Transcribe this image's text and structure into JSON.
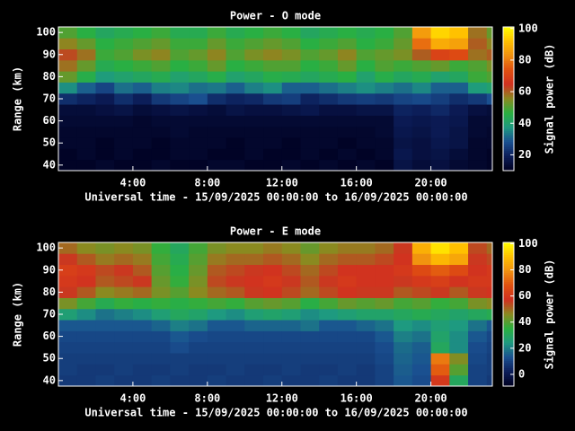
{
  "chart_data": [
    {
      "type": "heatmap",
      "title": "Power - O mode",
      "xlabel": "Universal time - 15/09/2025 00:00:00 to 16/09/2025 00:00:00",
      "ylabel": "Range (km)",
      "colorbar_label": "Signal power (dB)",
      "xlim": [
        0,
        23.3
      ],
      "ylim": [
        37.5,
        102.5
      ],
      "clim": [
        10,
        101
      ],
      "xticks": [
        {
          "value": 4,
          "label": "4:00"
        },
        {
          "value": 8,
          "label": "8:00"
        },
        {
          "value": 12,
          "label": "12:00"
        },
        {
          "value": 16,
          "label": "16:00"
        },
        {
          "value": 20,
          "label": "20:00"
        }
      ],
      "yticks": [
        40,
        50,
        60,
        70,
        80,
        90,
        100
      ],
      "cticks": [
        20,
        40,
        60,
        80,
        100
      ],
      "colormap": [
        "#000020",
        "#0c1e5a",
        "#1a5090",
        "#1e9a80",
        "#2ab040",
        "#8a8a20",
        "#d03020",
        "#e05010",
        "#f09010",
        "#ffc000",
        "#ffff00"
      ],
      "x": [
        0,
        1,
        2,
        3,
        4,
        5,
        6,
        7,
        8,
        9,
        10,
        11,
        12,
        13,
        14,
        15,
        16,
        17,
        18,
        19,
        20,
        21,
        22,
        23
      ],
      "y": [
        40,
        45,
        50,
        55,
        60,
        65,
        70,
        75,
        80,
        85,
        90,
        95,
        100
      ],
      "z": [
        [
          11,
          11,
          12,
          11,
          11,
          12,
          11,
          11,
          12,
          12,
          11,
          11,
          12,
          11,
          12,
          11,
          12,
          11,
          16,
          14,
          15,
          13,
          12,
          11
        ],
        [
          11,
          12,
          11,
          12,
          11,
          11,
          12,
          12,
          11,
          11,
          12,
          11,
          11,
          12,
          11,
          12,
          11,
          12,
          17,
          15,
          16,
          14,
          12,
          11
        ],
        [
          12,
          12,
          11,
          12,
          12,
          11,
          12,
          12,
          12,
          11,
          12,
          12,
          11,
          12,
          12,
          11,
          12,
          12,
          16,
          15,
          17,
          16,
          12,
          12
        ],
        [
          12,
          12,
          12,
          12,
          12,
          12,
          13,
          12,
          12,
          12,
          12,
          12,
          12,
          12,
          12,
          12,
          12,
          13,
          17,
          16,
          18,
          16,
          13,
          12
        ],
        [
          13,
          13,
          13,
          13,
          12,
          13,
          13,
          13,
          13,
          13,
          13,
          13,
          13,
          13,
          13,
          13,
          13,
          13,
          18,
          17,
          18,
          17,
          13,
          13
        ],
        [
          14,
          14,
          15,
          16,
          14,
          15,
          16,
          15,
          14,
          16,
          15,
          15,
          16,
          17,
          15,
          15,
          16,
          16,
          20,
          19,
          21,
          18,
          15,
          14
        ],
        [
          22,
          20,
          18,
          22,
          19,
          24,
          26,
          28,
          22,
          20,
          21,
          24,
          25,
          20,
          22,
          24,
          25,
          24,
          26,
          27,
          25,
          22,
          24,
          28
        ],
        [
          36,
          30,
          26,
          32,
          30,
          34,
          35,
          32,
          33,
          30,
          34,
          36,
          30,
          30,
          32,
          34,
          36,
          34,
          32,
          35,
          30,
          30,
          38,
          40
        ],
        [
          52,
          45,
          38,
          40,
          42,
          44,
          40,
          42,
          45,
          40,
          42,
          45,
          44,
          42,
          44,
          46,
          40,
          45,
          42,
          44,
          40,
          42,
          48,
          50
        ],
        [
          58,
          52,
          44,
          46,
          48,
          50,
          46,
          48,
          52,
          46,
          48,
          50,
          50,
          46,
          48,
          52,
          46,
          50,
          48,
          50,
          52,
          48,
          50,
          54
        ],
        [
          62,
          58,
          48,
          50,
          54,
          56,
          50,
          52,
          56,
          50,
          54,
          56,
          54,
          50,
          52,
          56,
          50,
          52,
          54,
          60,
          70,
          72,
          58,
          60
        ],
        [
          56,
          52,
          46,
          48,
          50,
          52,
          48,
          48,
          52,
          48,
          50,
          52,
          50,
          46,
          48,
          50,
          46,
          48,
          52,
          78,
          88,
          86,
          60,
          56
        ],
        [
          50,
          46,
          42,
          44,
          46,
          48,
          44,
          44,
          48,
          44,
          46,
          48,
          46,
          42,
          44,
          46,
          44,
          46,
          50,
          85,
          95,
          92,
          58,
          52
        ]
      ]
    },
    {
      "type": "heatmap",
      "title": "Power - E mode",
      "xlabel": "Universal time - 15/09/2025 00:00:00 to 16/09/2025 00:00:00",
      "ylabel": "Range (km)",
      "colorbar_label": "Signal power (dB)",
      "xlim": [
        0,
        23.3
      ],
      "ylim": [
        37.5,
        102.5
      ],
      "clim": [
        -9,
        101
      ],
      "xticks": [
        {
          "value": 4,
          "label": "4:00"
        },
        {
          "value": 8,
          "label": "8:00"
        },
        {
          "value": 12,
          "label": "12:00"
        },
        {
          "value": 16,
          "label": "16:00"
        },
        {
          "value": 20,
          "label": "20:00"
        }
      ],
      "yticks": [
        40,
        50,
        60,
        70,
        80,
        90,
        100
      ],
      "cticks": [
        0,
        20,
        40,
        60,
        80,
        100
      ],
      "colormap": [
        "#000020",
        "#0c1e5a",
        "#1a5090",
        "#1e9a80",
        "#2ab040",
        "#8a8a20",
        "#d03020",
        "#e05010",
        "#f09010",
        "#ffc000",
        "#ffff00"
      ],
      "x": [
        0,
        1,
        2,
        3,
        4,
        5,
        6,
        7,
        8,
        9,
        10,
        11,
        12,
        13,
        14,
        15,
        16,
        17,
        18,
        19,
        20,
        21,
        22,
        23
      ],
      "y": [
        40,
        45,
        50,
        55,
        60,
        65,
        70,
        75,
        80,
        85,
        90,
        95,
        100
      ],
      "z": [
        [
          8,
          8,
          9,
          8,
          8,
          9,
          8,
          8,
          9,
          8,
          8,
          9,
          8,
          8,
          9,
          8,
          8,
          10,
          14,
          12,
          60,
          30,
          10,
          8
        ],
        [
          9,
          8,
          8,
          9,
          8,
          8,
          9,
          8,
          8,
          9,
          8,
          8,
          9,
          8,
          8,
          9,
          8,
          10,
          15,
          13,
          70,
          40,
          10,
          9
        ],
        [
          9,
          9,
          9,
          9,
          9,
          9,
          9,
          9,
          9,
          9,
          9,
          9,
          9,
          9,
          9,
          9,
          9,
          11,
          16,
          14,
          75,
          45,
          11,
          9
        ],
        [
          10,
          10,
          10,
          10,
          10,
          10,
          12,
          10,
          10,
          10,
          10,
          10,
          10,
          10,
          10,
          10,
          10,
          12,
          17,
          15,
          30,
          22,
          12,
          10
        ],
        [
          11,
          11,
          11,
          11,
          11,
          11,
          14,
          12,
          11,
          11,
          11,
          11,
          11,
          11,
          11,
          11,
          11,
          14,
          20,
          18,
          28,
          22,
          14,
          11
        ],
        [
          14,
          14,
          14,
          14,
          14,
          16,
          20,
          18,
          14,
          14,
          16,
          16,
          16,
          18,
          14,
          14,
          16,
          18,
          24,
          22,
          26,
          24,
          18,
          14
        ],
        [
          26,
          22,
          18,
          20,
          22,
          26,
          30,
          28,
          24,
          22,
          26,
          28,
          26,
          22,
          24,
          26,
          28,
          28,
          30,
          32,
          30,
          28,
          30,
          32
        ],
        [
          44,
          38,
          32,
          36,
          34,
          36,
          34,
          36,
          38,
          36,
          40,
          42,
          40,
          34,
          38,
          42,
          40,
          42,
          38,
          40,
          36,
          38,
          44,
          46
        ],
        [
          56,
          52,
          46,
          48,
          50,
          44,
          40,
          46,
          50,
          52,
          56,
          58,
          54,
          50,
          54,
          58,
          56,
          56,
          52,
          54,
          56,
          52,
          56,
          58
        ],
        [
          60,
          58,
          52,
          54,
          56,
          42,
          36,
          44,
          54,
          56,
          58,
          60,
          56,
          52,
          56,
          60,
          58,
          58,
          56,
          60,
          62,
          58,
          60,
          60
        ],
        [
          62,
          60,
          54,
          56,
          52,
          40,
          34,
          42,
          52,
          54,
          56,
          58,
          54,
          50,
          54,
          58,
          58,
          58,
          60,
          66,
          70,
          66,
          58,
          60
        ],
        [
          56,
          52,
          48,
          50,
          48,
          38,
          32,
          40,
          48,
          50,
          50,
          52,
          50,
          46,
          50,
          52,
          52,
          54,
          58,
          80,
          88,
          84,
          56,
          54
        ],
        [
          50,
          46,
          44,
          46,
          44,
          36,
          30,
          38,
          44,
          46,
          46,
          48,
          46,
          42,
          46,
          48,
          48,
          50,
          56,
          86,
          96,
          90,
          54,
          50
        ]
      ]
    }
  ]
}
